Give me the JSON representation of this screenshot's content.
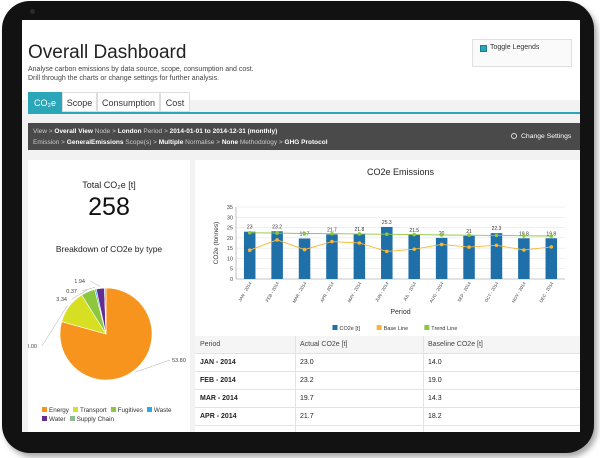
{
  "app": {
    "title": "Overall Dashboard",
    "subtitle_line1": "Analyse carbon emissions by data source, scope, consumption and cost.",
    "subtitle_line2": "Drill through the charts or change settings for further analysis.",
    "toggle_legends": "Toggle Legends"
  },
  "tabs": [
    {
      "label": "CO₂e",
      "active": true
    },
    {
      "label": "Scope",
      "active": false
    },
    {
      "label": "Consumption",
      "active": false
    },
    {
      "label": "Cost",
      "active": false
    }
  ],
  "settings": {
    "view_k": "View >",
    "view_v": "Overall View",
    "node_k": "Node >",
    "node_v": "London",
    "period_k": "Period >",
    "period_v": "2014-01-01 to 2014-12-31 (monthly)",
    "emission_k": "Emission >",
    "emission_v": "GeneralEmissions",
    "scope_k": "Scope(s) >",
    "scope_v": "Multiple",
    "normalise_k": "Normalise >",
    "normalise_v": "None",
    "methodology_k": "Methodology >",
    "methodology_v": "GHG Protocol",
    "change_label": "Change Settings"
  },
  "summary": {
    "total_label": "Total CO₂e [t]",
    "total_value": "258",
    "breakdown_title": "Breakdown of CO2e by type"
  },
  "pie": {
    "slices": [
      {
        "name": "Energy",
        "value": 53.8,
        "label": "53.80",
        "color": "#f7941d"
      },
      {
        "name": "Transport",
        "value": 8.0,
        "label": "8.00",
        "color": "#d7df23"
      },
      {
        "name": "Fugitives",
        "value": 3.34,
        "label": "3.34",
        "color": "#8dc63f"
      },
      {
        "name": "Waste",
        "value": 0.37,
        "label": "0.37",
        "color": "#29abe2"
      },
      {
        "name": "Water",
        "value": 1.94,
        "label": "1.94",
        "color": "#662d91"
      },
      {
        "name": "Supply Chain",
        "value": 0.37,
        "label": "",
        "color": "#8fbc8f"
      }
    ],
    "legend": [
      {
        "name": "Energy",
        "color": "#f7941d"
      },
      {
        "name": "Transport",
        "color": "#d7df23"
      },
      {
        "name": "Fugitives",
        "color": "#8dc63f"
      },
      {
        "name": "Waste",
        "color": "#29abe2"
      },
      {
        "name": "Water",
        "color": "#662d91"
      },
      {
        "name": "Supply Chain",
        "color": "#8fbc8f"
      }
    ]
  },
  "chart_data": {
    "type": "bar",
    "title": "CO2e Emissions",
    "xlabel": "Period",
    "ylabel": "CO2e (tonnes)",
    "ylim": [
      0,
      35
    ],
    "yticks": [
      0,
      5,
      10,
      15,
      20,
      25,
      30,
      35
    ],
    "grid": true,
    "legend_position": "bottom",
    "categories": [
      "JAN - 2014",
      "FEB - 2014",
      "MAR - 2014",
      "APR - 2014",
      "MAY - 2014",
      "JUN - 2014",
      "JUL - 2014",
      "AUG - 2014",
      "SEP - 2014",
      "OCT - 2014",
      "NOV - 2014",
      "DEC - 2014"
    ],
    "series": [
      {
        "name": "CO2e [t]",
        "type": "bar",
        "color": "#1f6fa8",
        "values": [
          23.0,
          23.2,
          19.7,
          21.7,
          21.8,
          25.3,
          21.5,
          20,
          21,
          22.3,
          19.8,
          19.8
        ],
        "labels": [
          "23",
          "23.2",
          "19.7",
          "21.7",
          "21.8",
          "25.3",
          "21.5",
          "20",
          "21",
          "22.3",
          "19.8",
          "19.8"
        ]
      },
      {
        "name": "Base Line",
        "type": "line",
        "color": "#f7b733",
        "values": [
          14.0,
          19.0,
          14.3,
          18.2,
          17.5,
          13.4,
          14.5,
          16.8,
          15.5,
          16.4,
          14.1,
          15.6
        ]
      },
      {
        "name": "Trend Line",
        "type": "line",
        "color": "#8dc63f",
        "values": [
          22.5,
          22.3,
          22.1,
          22.0,
          21.9,
          21.8,
          21.6,
          21.4,
          21.3,
          21.2,
          21.0,
          20.9
        ]
      }
    ]
  },
  "table": {
    "headers": [
      "Period",
      "Actual CO2e [t]",
      "Baseline CO2e [t]"
    ],
    "rows": [
      {
        "period": "JAN - 2014",
        "actual": "23.0",
        "baseline": "14.0"
      },
      {
        "period": "FEB - 2014",
        "actual": "23.2",
        "baseline": "19.0"
      },
      {
        "period": "MAR - 2014",
        "actual": "19.7",
        "baseline": "14.3"
      },
      {
        "period": "APR - 2014",
        "actual": "21.7",
        "baseline": "18.2"
      }
    ]
  }
}
